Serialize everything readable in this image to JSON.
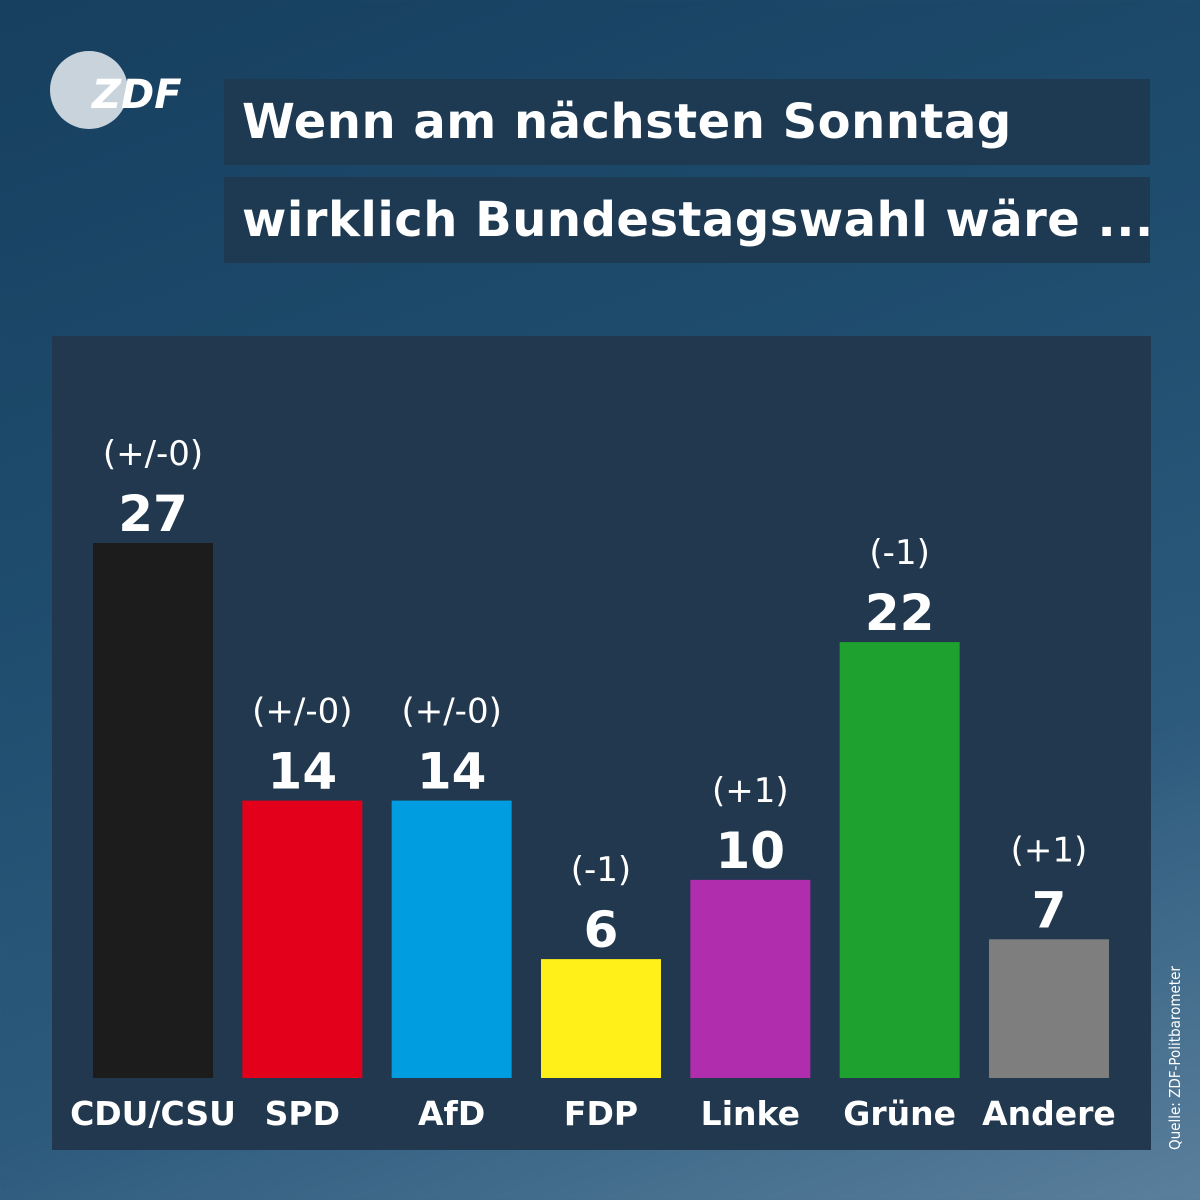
{
  "logo": {
    "text": "ZDF",
    "colors": {
      "disc": "#c9d3dc",
      "text": "#ffffff"
    }
  },
  "header": {
    "title_line_1": "Wenn am nächsten Sonntag",
    "title_line_2": "wirklich Bundestagswahl wäre ..."
  },
  "source": "Quelle: ZDF-Politbarometer",
  "chart_data": {
    "type": "bar",
    "title": "Wenn am nächsten Sonntag wirklich Bundestagswahl wäre ...",
    "categories": [
      "CDU/CSU",
      "SPD",
      "AfD",
      "FDP",
      "Linke",
      "Grüne",
      "Andere"
    ],
    "values": [
      27,
      14,
      14,
      6,
      10,
      22,
      7
    ],
    "changes": [
      "(+/-0)",
      "(+/-0)",
      "(+/-0)",
      "(-1)",
      "(+1)",
      "(-1)",
      "(+1)"
    ],
    "colors": [
      "#1c1c1c",
      "#e2001a",
      "#009ee0",
      "#fff019",
      "#b02ead",
      "#1fa12f",
      "#7e7e7e"
    ],
    "ylim": [
      0,
      27
    ],
    "grid": false,
    "legend": "none"
  }
}
